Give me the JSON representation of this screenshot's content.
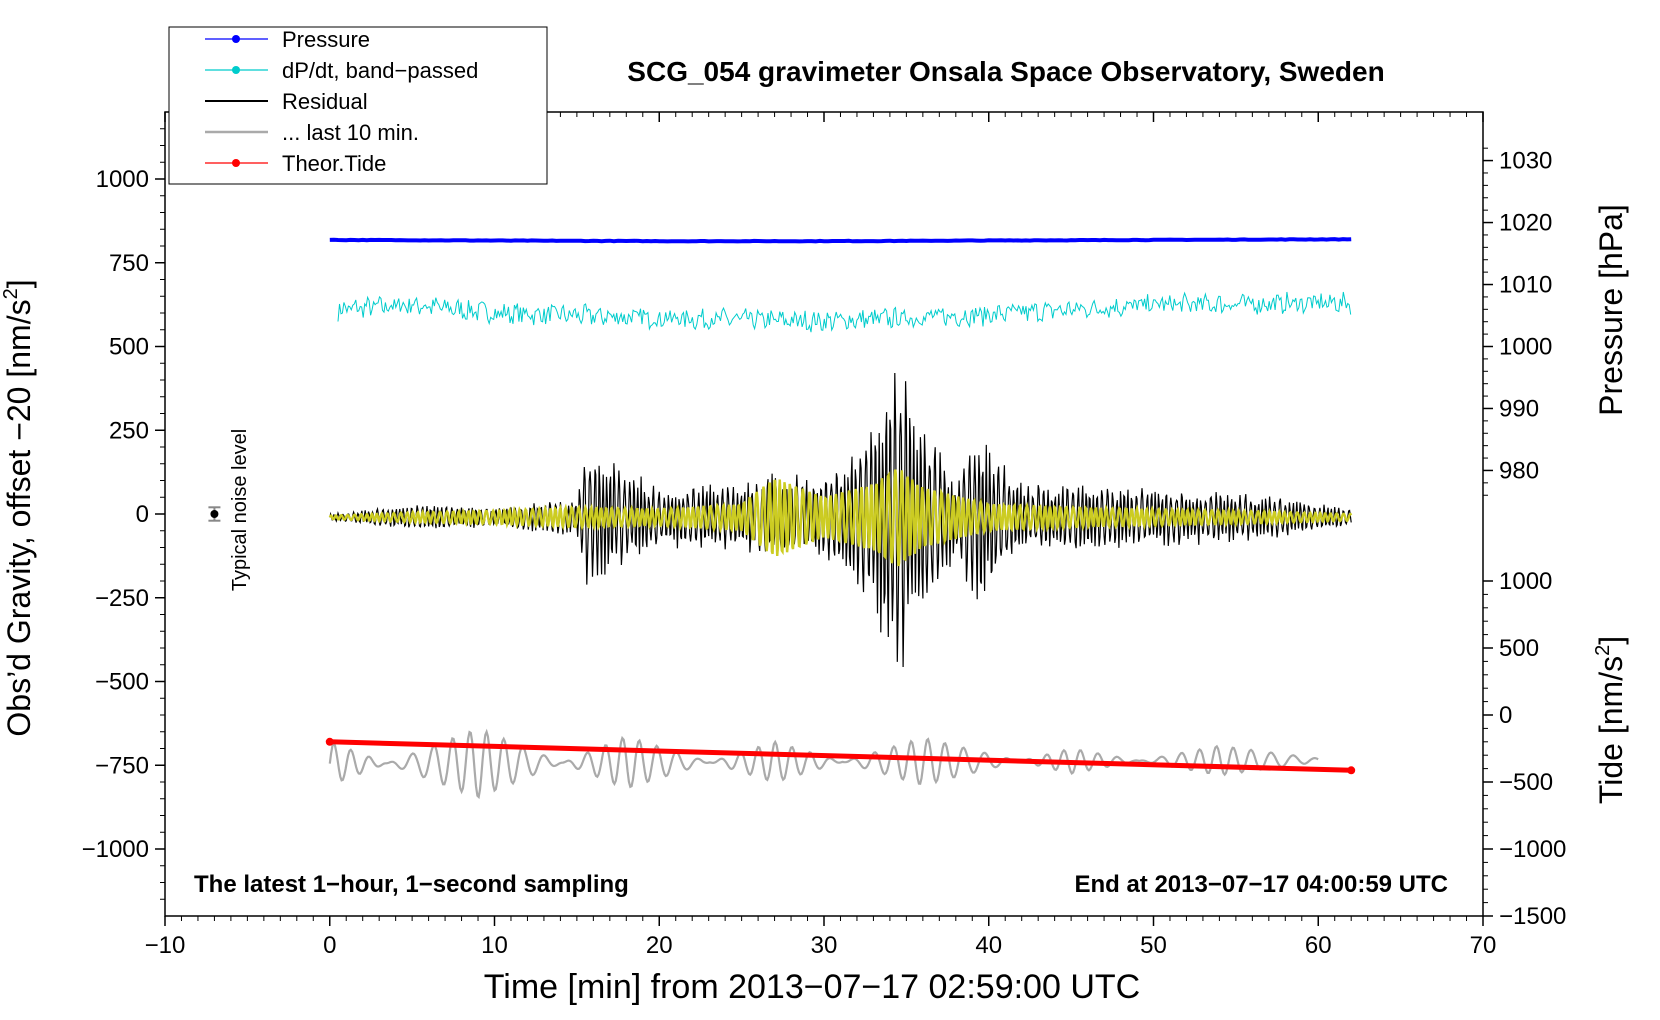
{
  "chart_data": {
    "type": "line",
    "title": "SCG_054 gravimeter Onsala Space Observatory, Sweden",
    "xlabel": "Time [min] from 2013−07−17 02:59:00 UTC",
    "ylabel": "Obs’d Gravity, offset −20 [nm/s²]",
    "ylabel_main": "Obs’d Gravity, offset −20 [nm/s",
    "ylabel_sup": "2",
    "ylabel_end": "]",
    "right_axis_pressure_label": "Pressure [hPa]",
    "right_axis_tide_label_main": "Tide [nm/s",
    "right_axis_tide_label_sup": "2",
    "right_axis_tide_label_end": "]",
    "xlim": [
      -10,
      70
    ],
    "ylim": [
      -1200,
      1200
    ],
    "x_ticks": [
      "−10",
      "0",
      "10",
      "20",
      "30",
      "40",
      "50",
      "60",
      "70"
    ],
    "x_tick_values": [
      -10,
      0,
      10,
      20,
      30,
      40,
      50,
      60,
      70
    ],
    "y_ticks": [
      "1000",
      "750",
      "500",
      "250",
      "0",
      "−250",
      "−500",
      "−750",
      "−1000"
    ],
    "y_tick_values": [
      1000,
      750,
      500,
      250,
      0,
      -250,
      -500,
      -750,
      -1000
    ],
    "pressure_axis": {
      "ticks": [
        "1030",
        "1020",
        "1010",
        "1000",
        "990",
        "980"
      ],
      "tick_values": [
        1030,
        1020,
        1010,
        1000,
        990,
        980
      ],
      "gravity_at_1000": 500,
      "gravity_per_hpa": 18.5
    },
    "tide_axis": {
      "ticks": [
        "1000",
        "500",
        "0",
        "−500",
        "−1000",
        "−1500"
      ],
      "tick_values": [
        1000,
        500,
        0,
        -500,
        -1000,
        -1500
      ],
      "gravity_at_0": -600,
      "gravity_per_unit": 0.4
    },
    "annotation_left": "The latest 1−hour, 1−second sampling",
    "annotation_right": "End at 2013−07−17 04:00:59 UTC",
    "noise_label": "Typical noise level",
    "noise_marker": {
      "x": -7,
      "y": 0,
      "err": 20
    },
    "legend_placement": "top-left",
    "grid": false,
    "series": [
      {
        "name": "Pressure",
        "color": "#0000ff",
        "kind": "pressure",
        "x": [
          0,
          10,
          20,
          30,
          40,
          50,
          62
        ],
        "values": [
          1017.2,
          1017.1,
          1017.0,
          1017.0,
          1017.1,
          1017.2,
          1017.3
        ]
      },
      {
        "name": "dP/dt, band−passed",
        "color": "#00cccc",
        "kind": "dpdt",
        "x": [
          0.5,
          5,
          10,
          20,
          30,
          40,
          50,
          62
        ],
        "values": [
          610,
          625,
          600,
          585,
          575,
          595,
          625,
          630
        ]
      },
      {
        "name": "Residual",
        "color": "#000000",
        "kind": "residual",
        "x": [
          0,
          5,
          10,
          15,
          15.6,
          20,
          25,
          27,
          30,
          33,
          34.5,
          36,
          38,
          39.3,
          42,
          50,
          55,
          62
        ],
        "values": [
          10,
          40,
          30,
          60,
          220,
          90,
          110,
          140,
          120,
          300,
          520,
          300,
          120,
          270,
          110,
          90,
          80,
          30
        ]
      },
      {
        "name": "... last 10 min.",
        "color": "#aaaaaa",
        "kind": "last10",
        "x": [
          0,
          9,
          18,
          27,
          36,
          45,
          54,
          60
        ],
        "values": [
          -810,
          -640,
          -820,
          -680,
          -810,
          -700,
          -780,
          -740
        ]
      },
      {
        "name": "Theor.Tide",
        "color": "#ff0000",
        "kind": "tide",
        "x": [
          0,
          62
        ],
        "values": [
          -680,
          -765
        ]
      },
      {
        "name": "",
        "color": "#cccc22",
        "kind": "filtered",
        "x": [
          0,
          5,
          10,
          15,
          20,
          25,
          27,
          30,
          33,
          34.5,
          36,
          40,
          45,
          50,
          55,
          62
        ],
        "values": [
          5,
          15,
          20,
          30,
          25,
          40,
          120,
          60,
          100,
          150,
          90,
          40,
          30,
          25,
          20,
          10
        ]
      }
    ]
  }
}
